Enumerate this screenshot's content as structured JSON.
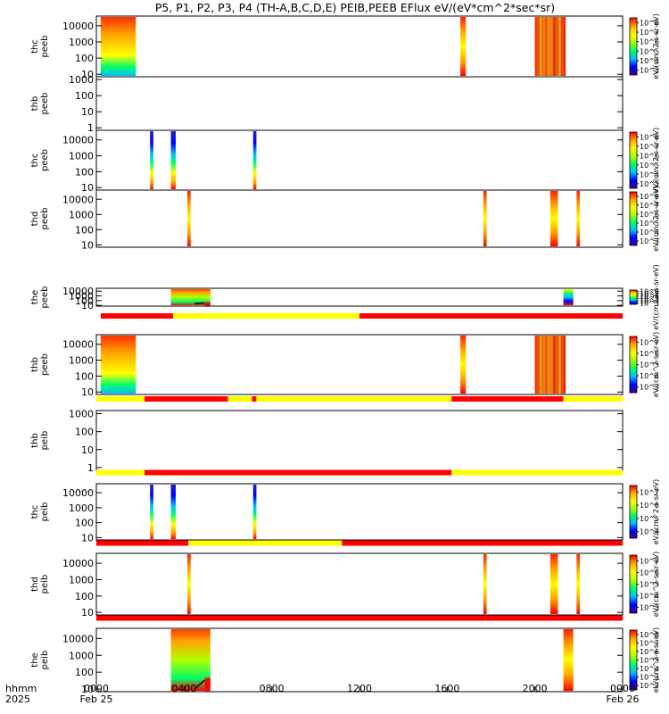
{
  "title": "P5, P1, P2, P3, P4 (TH-A,B,C,D,E) PEIB,PEEB EFlux eV/(eV*cm^2*sec*sr)",
  "bottom_labels": {
    "row1": "hhmm",
    "row2": "2025"
  },
  "colors": {
    "axes": "#000000",
    "flag_good": "#ffff00",
    "flag_bad": "#ff0000",
    "background": "#ffffff"
  },
  "chart_data": {
    "type": "heatmap",
    "xlim": [
      0,
      24
    ],
    "x_tick_labels": [
      {
        "x": 0,
        "label": "0000",
        "date": "Feb 25"
      },
      {
        "x": 4,
        "label": "0400",
        "date": ""
      },
      {
        "x": 8,
        "label": "0800",
        "date": ""
      },
      {
        "x": 12,
        "label": "1200",
        "date": ""
      },
      {
        "x": 16,
        "label": "1600",
        "date": ""
      },
      {
        "x": 20,
        "label": "2000",
        "date": ""
      },
      {
        "x": 24,
        "label": "0000",
        "date": "Feb 26"
      }
    ],
    "colorbar_cmap": [
      "#4b0082",
      "#0000ff",
      "#00bfff",
      "#00ff66",
      "#b0ff00",
      "#ffff00",
      "#ffa500",
      "#ff0000"
    ],
    "panels": [
      {
        "ylabel": [
          "thc",
          "peeb"
        ],
        "ylog": true,
        "ylim": [
          7,
          40000
        ],
        "yticks": [
          10,
          100,
          1000,
          10000
        ],
        "cbar_label": "eV/(cm^2-s-sr-eV)",
        "cbar_ticks": [
          "10^3",
          "10^4",
          "10^5",
          "10^6",
          "10^7",
          "10^8"
        ],
        "cbar_exp": [
          3,
          4,
          5,
          6,
          7,
          8
        ],
        "flag_before": null,
        "data": [
          {
            "x0": 0.2,
            "x1": 1.8,
            "style": "warm"
          },
          {
            "x0": 16.6,
            "x1": 16.85,
            "style": "band"
          },
          {
            "x0": 20.0,
            "x1": 21.4,
            "style": "stripe"
          }
        ]
      },
      {
        "ylabel": [
          "thb",
          "peeb"
        ],
        "ylog": true,
        "ylim": [
          0.7,
          1500
        ],
        "yticks": [
          1,
          10,
          100,
          1000
        ],
        "cbar_label": "",
        "cbar_ticks": [],
        "cbar_exp": [],
        "flag_before": null,
        "data": []
      },
      {
        "ylabel": [
          "thc",
          "peeb"
        ],
        "ylog": true,
        "ylim": [
          7,
          40000
        ],
        "yticks": [
          10,
          100,
          1000,
          10000
        ],
        "cbar_label": "eV/(cm^2-s-sr-eV)",
        "cbar_ticks": [
          "10^3",
          "10^4",
          "10^5",
          "10^6",
          "10^7",
          "10^8"
        ],
        "cbar_exp": [
          3,
          4,
          5,
          6,
          7,
          8
        ],
        "flag_before": null,
        "data": [
          {
            "x0": 2.45,
            "x1": 2.6,
            "style": "line"
          },
          {
            "x0": 3.4,
            "x1": 3.62,
            "style": "line"
          },
          {
            "x0": 7.15,
            "x1": 7.3,
            "style": "line"
          }
        ]
      },
      {
        "ylabel": [
          "thd",
          "peeb"
        ],
        "ylog": true,
        "ylim": [
          7,
          40000
        ],
        "yticks": [
          10,
          100,
          1000,
          10000
        ],
        "cbar_label": "eV/(cm^2-s-sr-eV)",
        "cbar_ticks": [
          "10^3",
          "10^4",
          "10^5",
          "10^6",
          "10^7",
          "10^8"
        ],
        "cbar_exp": [
          3,
          4,
          5,
          6,
          7,
          8
        ],
        "flag_before": null,
        "data": [
          {
            "x0": 4.15,
            "x1": 4.3,
            "style": "band"
          },
          {
            "x0": 17.65,
            "x1": 17.8,
            "style": "band"
          },
          {
            "x0": 20.7,
            "x1": 21.05,
            "style": "band"
          },
          {
            "x0": 21.9,
            "x1": 22.05,
            "style": "band"
          }
        ]
      },
      {
        "ylabel": [
          "the",
          "peeb"
        ],
        "ylog": true,
        "ylim": [
          7,
          40000
        ],
        "yticks": [
          10,
          100,
          1000,
          10000
        ],
        "cbar_label": "eV/(cm^2-s-sr-eV)",
        "cbar_ticks": [
          "10^3",
          "10^4",
          "10^5",
          "10^6",
          "10^7",
          "10^8"
        ],
        "cbar_exp": [
          3,
          4,
          5,
          6,
          7,
          8
        ],
        "flag_before": null,
        "data": [
          {
            "x0": 3.4,
            "x1": 5.2,
            "style": "blob"
          },
          {
            "x0": 21.3,
            "x1": 21.75,
            "style": "vee"
          }
        ]
      },
      {
        "ylabel": [
          "thb",
          "peeb"
        ],
        "ylog": true,
        "ylim": [
          7,
          40000
        ],
        "yticks": [
          10,
          100,
          1000,
          10000
        ],
        "cbar_label": "eV/(cm^2-s-sr-eV)",
        "cbar_ticks": [
          "10^3",
          "10^4",
          "10^5",
          "10^6",
          "10^7"
        ],
        "cbar_exp": [
          3,
          4,
          5,
          6,
          7
        ],
        "flag_before": [
          {
            "x0": 0.2,
            "x1": 3.5,
            "q": "bad"
          },
          {
            "x0": 3.5,
            "x1": 12.0,
            "q": "good"
          },
          {
            "x0": 12.0,
            "x1": 24.0,
            "q": "bad"
          }
        ],
        "data": [
          {
            "x0": 0.2,
            "x1": 1.8,
            "style": "warm"
          },
          {
            "x0": 16.6,
            "x1": 16.85,
            "style": "band"
          },
          {
            "x0": 20.0,
            "x1": 21.4,
            "style": "stripe"
          }
        ]
      },
      {
        "ylabel": [
          "thb",
          "peib"
        ],
        "ylog": true,
        "ylim": [
          0.7,
          1500
        ],
        "yticks": [
          1,
          10,
          100,
          1000
        ],
        "cbar_label": "",
        "cbar_ticks": [],
        "cbar_exp": [],
        "flag_before": [
          {
            "x0": 0.0,
            "x1": 2.2,
            "q": "good"
          },
          {
            "x0": 2.2,
            "x1": 6.0,
            "q": "bad"
          },
          {
            "x0": 6.0,
            "x1": 7.1,
            "q": "good"
          },
          {
            "x0": 7.1,
            "x1": 7.3,
            "q": "bad"
          },
          {
            "x0": 7.3,
            "x1": 16.2,
            "q": "good"
          },
          {
            "x0": 16.2,
            "x1": 21.3,
            "q": "bad"
          },
          {
            "x0": 21.3,
            "x1": 24.0,
            "q": "good"
          }
        ],
        "data": []
      },
      {
        "ylabel": [
          "thc",
          "peib"
        ],
        "ylog": true,
        "ylim": [
          7,
          40000
        ],
        "yticks": [
          10,
          100,
          1000,
          10000
        ],
        "cbar_label": "eV/(cm^2-s-sr-eV)",
        "cbar_ticks": [
          "10^4",
          "10^5",
          "10^6",
          "10^7"
        ],
        "cbar_exp": [
          4,
          5,
          6,
          7
        ],
        "flag_before": [
          {
            "x0": 0.0,
            "x1": 2.2,
            "q": "good"
          },
          {
            "x0": 2.2,
            "x1": 16.2,
            "q": "bad"
          },
          {
            "x0": 16.2,
            "x1": 21.3,
            "q": "good"
          },
          {
            "x0": 21.3,
            "x1": 24.0,
            "q": "good"
          }
        ],
        "data": [
          {
            "x0": 2.45,
            "x1": 2.6,
            "style": "line"
          },
          {
            "x0": 3.4,
            "x1": 3.62,
            "style": "line"
          },
          {
            "x0": 7.15,
            "x1": 7.3,
            "style": "line"
          }
        ]
      },
      {
        "ylabel": [
          "thd",
          "peib"
        ],
        "ylog": true,
        "ylim": [
          7,
          40000
        ],
        "yticks": [
          10,
          100,
          1000,
          10000
        ],
        "cbar_label": "eV/(cm^2-s-sr-eV)",
        "cbar_ticks": [
          "10^3",
          "10^4",
          "10^5",
          "10^6",
          "10^7"
        ],
        "cbar_exp": [
          3,
          4,
          5,
          6,
          7
        ],
        "flag_before": [
          {
            "x0": 0.0,
            "x1": 4.2,
            "q": "bad"
          },
          {
            "x0": 4.2,
            "x1": 11.2,
            "q": "good"
          },
          {
            "x0": 11.2,
            "x1": 24.0,
            "q": "bad"
          }
        ],
        "data": [
          {
            "x0": 4.15,
            "x1": 4.3,
            "style": "band"
          },
          {
            "x0": 17.65,
            "x1": 17.8,
            "style": "band"
          },
          {
            "x0": 20.7,
            "x1": 21.05,
            "style": "band"
          },
          {
            "x0": 21.9,
            "x1": 22.05,
            "style": "band"
          }
        ]
      },
      {
        "ylabel": [
          "the",
          "peib"
        ],
        "ylog": true,
        "ylim": [
          7,
          40000
        ],
        "yticks": [
          10,
          100,
          1000,
          10000
        ],
        "cbar_label": "eV/(cm^2-s-sr-eV)",
        "cbar_ticks": [
          "10^2",
          "10^3",
          "10^4",
          "10^5",
          "10^6",
          "10^7",
          "10^8"
        ],
        "cbar_exp": [
          2,
          3,
          4,
          5,
          6,
          7,
          8
        ],
        "flag_before": [
          {
            "x0": 0.0,
            "x1": 24.0,
            "q": "bad"
          }
        ],
        "data": [
          {
            "x0": 3.4,
            "x1": 5.2,
            "style": "blob"
          },
          {
            "x0": 21.3,
            "x1": 21.75,
            "style": "band"
          }
        ]
      }
    ]
  }
}
